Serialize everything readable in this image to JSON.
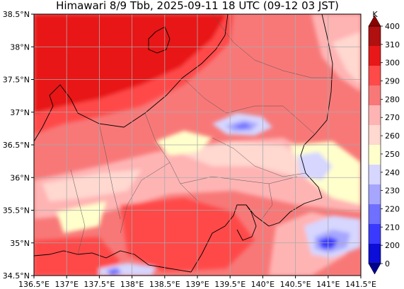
{
  "title": "Himawari 8/9 Tbb, 2025-09-11 18 UTC (09-12 03 JST)",
  "map": {
    "lon_ticks": [
      "136.5°E",
      "137°E",
      "137.5°E",
      "138°E",
      "138.5°E",
      "139°E",
      "139.5°E",
      "140°E",
      "140.5°E",
      "141°E",
      "141.5°E"
    ],
    "lat_ticks": [
      "38.5°N",
      "38°N",
      "37.5°N",
      "37°N",
      "36.5°N",
      "36°N",
      "35.5°N",
      "35°N",
      "34.5°N"
    ],
    "lon_range": [
      136.5,
      141.5
    ],
    "lat_range": [
      34.5,
      38.5
    ],
    "grid": true
  },
  "colorbar": {
    "unit": "K",
    "labels": [
      "400",
      "310",
      "300",
      "290",
      "280",
      "270",
      "260",
      "250",
      "240",
      "230",
      "220",
      "210",
      "200",
      "0"
    ],
    "colors": [
      "#8b0000",
      "#b01010",
      "#e81818",
      "#ff4a4a",
      "#f87878",
      "#ffb4b4",
      "#ffd8d0",
      "#ffffcc",
      "#d6d6ff",
      "#a6a6ff",
      "#7070ff",
      "#3a3aff",
      "#0d0dd8",
      "#000090"
    ]
  }
}
